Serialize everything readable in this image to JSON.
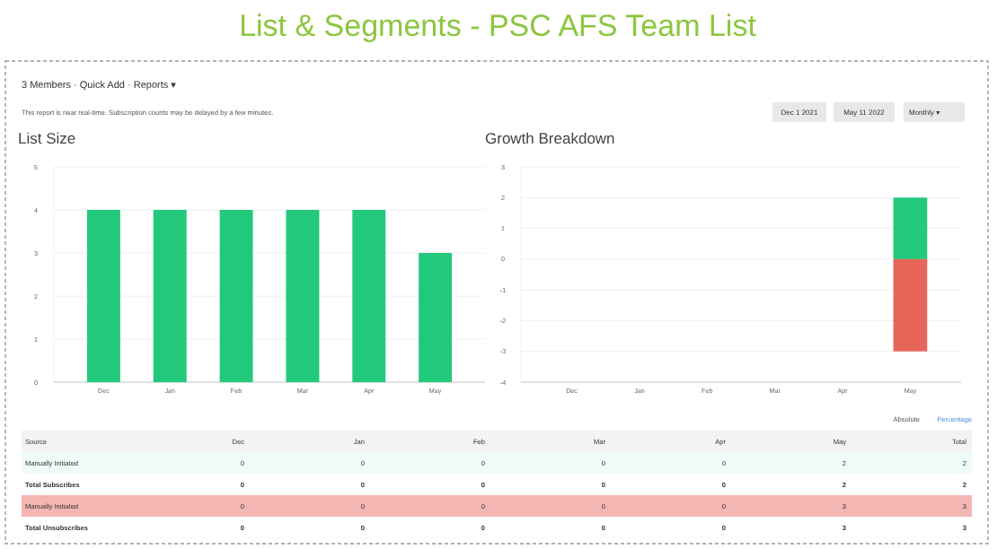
{
  "chart_data": [
    {
      "type": "other",
      "title": "List & Segments - PSC AFS Team List",
      "annotations": [
        "3 Members · Quick Add · Reports ▾",
        "This report is near real-time. Subscription counts may be delayed by a few minutes.",
        "Dec 1 2021",
        "May 11 2022",
        "Monthly ▾"
      ]
    },
    {
      "type": "bar",
      "title": "List Size",
      "categories": [
        "Dec",
        "Jan",
        "Feb",
        "Mar",
        "Apr",
        "May"
      ],
      "values": [
        4,
        4,
        4,
        4,
        4,
        3
      ],
      "color": "#22c97a",
      "ylim": [
        0,
        5
      ],
      "yticks": [
        0,
        1,
        2,
        3,
        4,
        5
      ],
      "grid": "y"
    },
    {
      "type": "bar",
      "title": "Growth Breakdown",
      "categories": [
        "Dec",
        "Jan",
        "Feb",
        "Mar",
        "Apr",
        "May"
      ],
      "stacked": true,
      "series": [
        {
          "color": "#22c97a",
          "values": [
            0,
            0,
            0,
            0,
            0,
            2
          ]
        },
        {
          "color": "#e8655a",
          "values": [
            0,
            0,
            0,
            0,
            0,
            -3
          ]
        }
      ],
      "ylim": [
        -4,
        3
      ],
      "yticks": [
        -4,
        -3,
        -2,
        -1,
        0,
        1,
        2,
        3
      ],
      "grid": "y"
    },
    {
      "type": "other",
      "categories": [
        "Source",
        "Dec",
        "Jan",
        "Feb",
        "Mar",
        "Apr",
        "May",
        "Total"
      ],
      "annotations": [
        "Absolute",
        "Percentage"
      ],
      "colors": [
        "#effcf5",
        "#ffffff",
        "#f4b6b2",
        "#ffffff"
      ],
      "cell_labels": [
        [
          "Manually Initiated",
          "0",
          "0",
          "0",
          "0",
          "0",
          "2",
          "2"
        ],
        [
          "Total Subscribes",
          "0",
          "0",
          "0",
          "0",
          "0",
          "2",
          "2"
        ],
        [
          "Manually Initiated",
          "0",
          "0",
          "0",
          "0",
          "0",
          "3",
          "3"
        ],
        [
          "Total Unsubscribes",
          "0",
          "0",
          "0",
          "0",
          "0",
          "3",
          "3"
        ]
      ]
    }
  ]
}
